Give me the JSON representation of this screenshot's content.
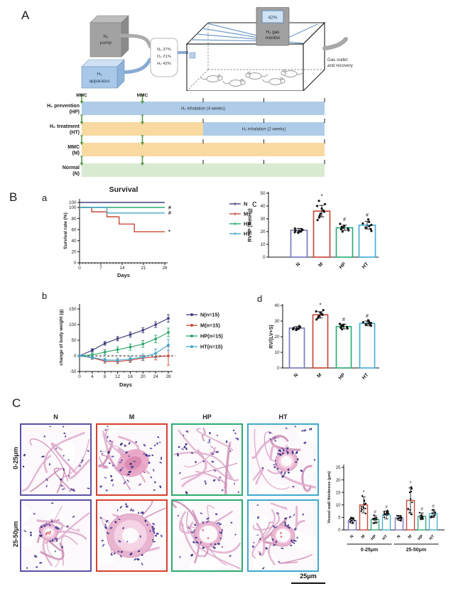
{
  "labels": {
    "A": "A",
    "B": "B",
    "C": "C",
    "a": "a",
    "b": "b",
    "c": "c",
    "d": "d"
  },
  "apparatus": {
    "n2_pump": [
      "N₂",
      "pump"
    ],
    "h2_apparatus": [
      "H₂",
      "apparatus"
    ],
    "gas_mix": [
      "N₂ 37%",
      "O₂ 21%",
      "H₂ 42%"
    ],
    "monitor_value": "42%",
    "monitor_label": [
      "H₂ gas",
      "monitor"
    ],
    "outlet_label": [
      "Gas outlet",
      "and recovery"
    ]
  },
  "timeline": {
    "mmc_label": "MMC",
    "weeks_total": 4,
    "injection_weeks": [
      0,
      1
    ],
    "tick_weeks": [
      2,
      3,
      4
    ],
    "colors": {
      "blue": "#aecbe8",
      "orange": "#f8d9a0",
      "green": "#d9ead3"
    },
    "arrow_color": "#5a9948",
    "rows": [
      {
        "label": [
          "H₂ prevention",
          "(HP)"
        ],
        "segments": [
          {
            "color": "blue",
            "from": 0,
            "to": 4,
            "text": "H₂ inhalation (4 weeks)"
          }
        ]
      },
      {
        "label": [
          "H₂ treatment",
          "(HT)"
        ],
        "segments": [
          {
            "color": "orange",
            "from": 0,
            "to": 2,
            "text": ""
          },
          {
            "color": "blue",
            "from": 2,
            "to": 4,
            "text": "H₂ inhalation (2 weeks)"
          }
        ]
      },
      {
        "label": [
          "MMC",
          "(M)"
        ],
        "segments": [
          {
            "color": "orange",
            "from": 0,
            "to": 4,
            "text": ""
          }
        ]
      },
      {
        "label": [
          "Normal",
          "(N)"
        ],
        "segments": [
          {
            "color": "green",
            "from": 0,
            "to": 4,
            "text": ""
          }
        ]
      }
    ]
  },
  "histology": {
    "columns": [
      "N",
      "M",
      "HP",
      "HT"
    ],
    "column_colors": [
      "#5b51a5",
      "#d8402f",
      "#2bab71",
      "#3fa9cf"
    ],
    "rows": [
      "0-25μm",
      "25-50μm"
    ],
    "scale_bar": "25μm"
  },
  "chart_data": [
    {
      "id": "survival",
      "type": "line",
      "title": "Survival",
      "xlabel": "Days",
      "ylabel": "Survival rate (%)",
      "xlim": [
        0,
        28
      ],
      "xticks": [
        0,
        7,
        14,
        21,
        28
      ],
      "ylim": [
        0,
        100
      ],
      "yticks": [
        100,
        80,
        60,
        40,
        20,
        0
      ],
      "duplicate_top_tick": "100",
      "legend": [
        "N",
        "M",
        "HP",
        "HT"
      ],
      "legend_position": "right",
      "series": [
        {
          "name": "N",
          "color": "#3f3f7e",
          "steps": [
            [
              0,
              100
            ],
            [
              28,
              100
            ]
          ],
          "end_symbol": ""
        },
        {
          "name": "M",
          "color": "#c84a3a",
          "steps": [
            [
              0,
              100
            ],
            [
              4,
              100
            ],
            [
              4,
              92
            ],
            [
              9,
              92
            ],
            [
              9,
              83
            ],
            [
              13,
              83
            ],
            [
              13,
              70
            ],
            [
              18,
              70
            ],
            [
              18,
              56
            ],
            [
              28,
              56
            ]
          ],
          "end_symbol": "*"
        },
        {
          "name": "HP",
          "color": "#2aa56a",
          "steps": [
            [
              0,
              100
            ],
            [
              28,
              100
            ]
          ],
          "end_symbol": "#"
        },
        {
          "name": "HT",
          "color": "#47a6c8",
          "steps": [
            [
              0,
              100
            ],
            [
              9,
              100
            ],
            [
              9,
              90
            ],
            [
              28,
              90
            ]
          ],
          "end_symbol": "#"
        }
      ]
    },
    {
      "id": "bodyweight",
      "type": "line",
      "xlabel": "Days",
      "ylabel": "change of body weight (g)",
      "x": [
        0,
        4,
        8,
        12,
        16,
        20,
        24,
        28
      ],
      "ylim": [
        -50,
        150
      ],
      "yticks": [
        -50,
        0,
        50,
        100,
        150
      ],
      "zero_line_dashed": true,
      "legend_position": "right",
      "series": [
        {
          "name": "N(n=15)",
          "color": "#3f3f7e",
          "values": [
            0,
            18,
            40,
            55,
            68,
            82,
            100,
            120
          ],
          "err": [
            2,
            5,
            6,
            7,
            8,
            8,
            9,
            12
          ]
        },
        {
          "name": "M(n=15)",
          "color": "#c84a3a",
          "values": [
            0,
            -6,
            -17,
            -18,
            -14,
            -7,
            -3,
            0
          ],
          "err": [
            2,
            5,
            6,
            7,
            7,
            8,
            10,
            30
          ]
        },
        {
          "name": "HP(n=15)",
          "color": "#2aa56a",
          "values": [
            0,
            3,
            12,
            20,
            28,
            38,
            54,
            75
          ],
          "err": [
            2,
            6,
            8,
            9,
            10,
            11,
            12,
            14
          ]
        },
        {
          "name": "HT(n=15)",
          "color": "#47a6c8",
          "values": [
            0,
            -5,
            -13,
            -14,
            -10,
            -4,
            8,
            35
          ],
          "err": [
            2,
            5,
            6,
            7,
            8,
            10,
            14,
            18
          ]
        }
      ]
    },
    {
      "id": "rvsp",
      "type": "bar",
      "ylabel": "RVSP (mmHg)",
      "ylim": [
        0,
        50
      ],
      "yticks": [
        0,
        10,
        20,
        30,
        40,
        50
      ],
      "categories": [
        "N",
        "M",
        "HP",
        "HT"
      ],
      "values": [
        21,
        36,
        23,
        25
      ],
      "err": [
        1.5,
        4.5,
        2,
        3
      ],
      "sig": [
        "",
        "*",
        "#",
        "#"
      ],
      "colors": [
        "#7b7bc0",
        "#c84a3a",
        "#2fae77",
        "#4aaed6"
      ],
      "points": [
        [
          19,
          19.5,
          20,
          20.3,
          20.8,
          21,
          21.4,
          21.8,
          22.4
        ],
        [
          29,
          31,
          32.5,
          34,
          35.5,
          36.5,
          38,
          40,
          41.5,
          44
        ],
        [
          20,
          21,
          21.8,
          22.3,
          23,
          23.6,
          24.5,
          26
        ],
        [
          20.5,
          22,
          23.2,
          24.2,
          25.2,
          26.3,
          27.6,
          29.5
        ]
      ]
    },
    {
      "id": "rv",
      "type": "bar",
      "ylabel": "RV/(LV+S)",
      "ylim": [
        0,
        40
      ],
      "yticks": [
        0,
        10,
        20,
        30,
        40
      ],
      "categories": [
        "N",
        "M",
        "HP",
        "HT"
      ],
      "values": [
        25.5,
        34,
        26.5,
        28.5
      ],
      "err": [
        1,
        2,
        1.5,
        1.5
      ],
      "sig": [
        "",
        "*",
        "#",
        "#"
      ],
      "colors": [
        "#7b7bc0",
        "#c84a3a",
        "#2fae77",
        "#4aaed6"
      ],
      "points": [
        [
          24.3,
          24.8,
          25,
          25.3,
          25.6,
          25.9,
          26.3,
          26.8
        ],
        [
          31,
          32,
          32.8,
          33.4,
          34,
          34.6,
          35.4,
          36.2,
          37
        ],
        [
          24.8,
          25.3,
          25.8,
          26.2,
          26.6,
          27.1,
          27.6,
          28.2
        ],
        [
          27,
          27.5,
          28,
          28.4,
          28.8,
          29.3,
          29.8,
          30.5
        ]
      ]
    },
    {
      "id": "vessel",
      "type": "bar-grouped",
      "ylabel": "Vessel wall thickness (μm)",
      "ylim": [
        0,
        25
      ],
      "yticks": [
        0,
        5,
        10,
        15,
        20,
        25
      ],
      "categories": [
        "N",
        "M",
        "HP",
        "HT"
      ],
      "colors": [
        "#7b7bc0",
        "#c84a3a",
        "#2fae77",
        "#4aaed6"
      ],
      "groups": [
        {
          "label": "0-25μm",
          "values": [
            3.8,
            10,
            4.2,
            6
          ],
          "err": [
            1.2,
            3.2,
            1.5,
            1.6
          ],
          "sig": [
            "",
            "*",
            "#",
            "#"
          ]
        },
        {
          "label": "25-50μm",
          "values": [
            4.8,
            11.8,
            5.5,
            6.5
          ],
          "err": [
            1,
            5,
            1.3,
            1.4
          ],
          "sig": [
            "",
            "*",
            "#",
            "#"
          ]
        }
      ]
    }
  ]
}
